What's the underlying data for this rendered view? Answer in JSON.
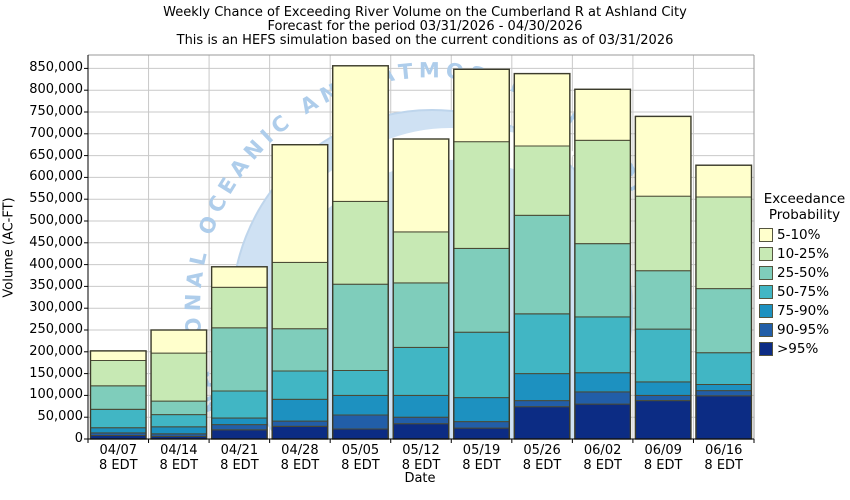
{
  "header": {
    "title_line1": "Weekly Chance of Exceeding River Volume on the Cumberland R at Ashland City",
    "title_line2": "Forecast for the period 03/31/2026 - 04/30/2026",
    "title_line3": "This is an HEFS simulation based on the current conditions as of 03/31/2026"
  },
  "watermark": {
    "text": "NATIONAL OCEANIC AND ATMOSPHERIC ADMINISTRATION",
    "circle_color": "#cfe1f3",
    "edge_color": "#bed5ec",
    "text_color": "#aecdeb"
  },
  "legend": {
    "title_line1": "Exceedance",
    "title_line2": "Probability"
  },
  "axes": {
    "grid_color": "#c9c9c9",
    "frame_color": "#9a9a9a",
    "axis_color": "#000000",
    "bar_border_color": "#4a4a35"
  },
  "chart_data": {
    "type": "bar",
    "stacked": true,
    "title": "Weekly Chance of Exceeding River Volume on the Cumberland R at Ashland City",
    "xlabel": "Date",
    "ylabel": "Volume (AC-FT)",
    "ylim": [
      0,
      850000
    ],
    "ytick_step": 50000,
    "grid": true,
    "legend_position": "right",
    "legend_title": "Exceedance Probability",
    "categories": [
      "04/07",
      "04/14",
      "04/21",
      "04/28",
      "05/05",
      "05/12",
      "05/19",
      "05/26",
      "06/02",
      "06/09",
      "06/16"
    ],
    "category_sublabel": "8 EDT",
    "series": [
      {
        "name": ">95%",
        "color": "#0c2c84",
        "values": [
          8000,
          6000,
          21000,
          29000,
          23000,
          35000,
          25000,
          74000,
          80000,
          88000,
          99000
        ]
      },
      {
        "name": "90-95%",
        "color": "#225ea8",
        "values": [
          6000,
          6000,
          12000,
          12000,
          32000,
          15000,
          15000,
          14000,
          28000,
          12000,
          12000
        ]
      },
      {
        "name": "75-90%",
        "color": "#1d91c0",
        "values": [
          12000,
          16000,
          15000,
          50000,
          45000,
          50000,
          55000,
          62000,
          44000,
          31000,
          14000
        ]
      },
      {
        "name": "50-75%",
        "color": "#41b6c4",
        "values": [
          42000,
          28000,
          62000,
          65000,
          57000,
          110000,
          150000,
          137000,
          128000,
          121000,
          73000
        ]
      },
      {
        "name": "25-50%",
        "color": "#7fcdbb",
        "values": [
          54000,
          31000,
          145000,
          97000,
          198000,
          148000,
          192000,
          226000,
          168000,
          134000,
          147000
        ]
      },
      {
        "name": "10-25%",
        "color": "#c7e9b4",
        "values": [
          58000,
          110000,
          93000,
          152000,
          190000,
          117000,
          245000,
          159000,
          237000,
          171000,
          210000
        ]
      },
      {
        "name": "5-10%",
        "color": "#ffffcc",
        "values": [
          22000,
          53000,
          47000,
          270000,
          311000,
          213000,
          166000,
          166000,
          117000,
          183000,
          73000
        ]
      }
    ],
    "bar_totals": [
      202000,
      250000,
      395000,
      675000,
      856000,
      688000,
      848000,
      838000,
      802000,
      740000,
      628000
    ]
  }
}
